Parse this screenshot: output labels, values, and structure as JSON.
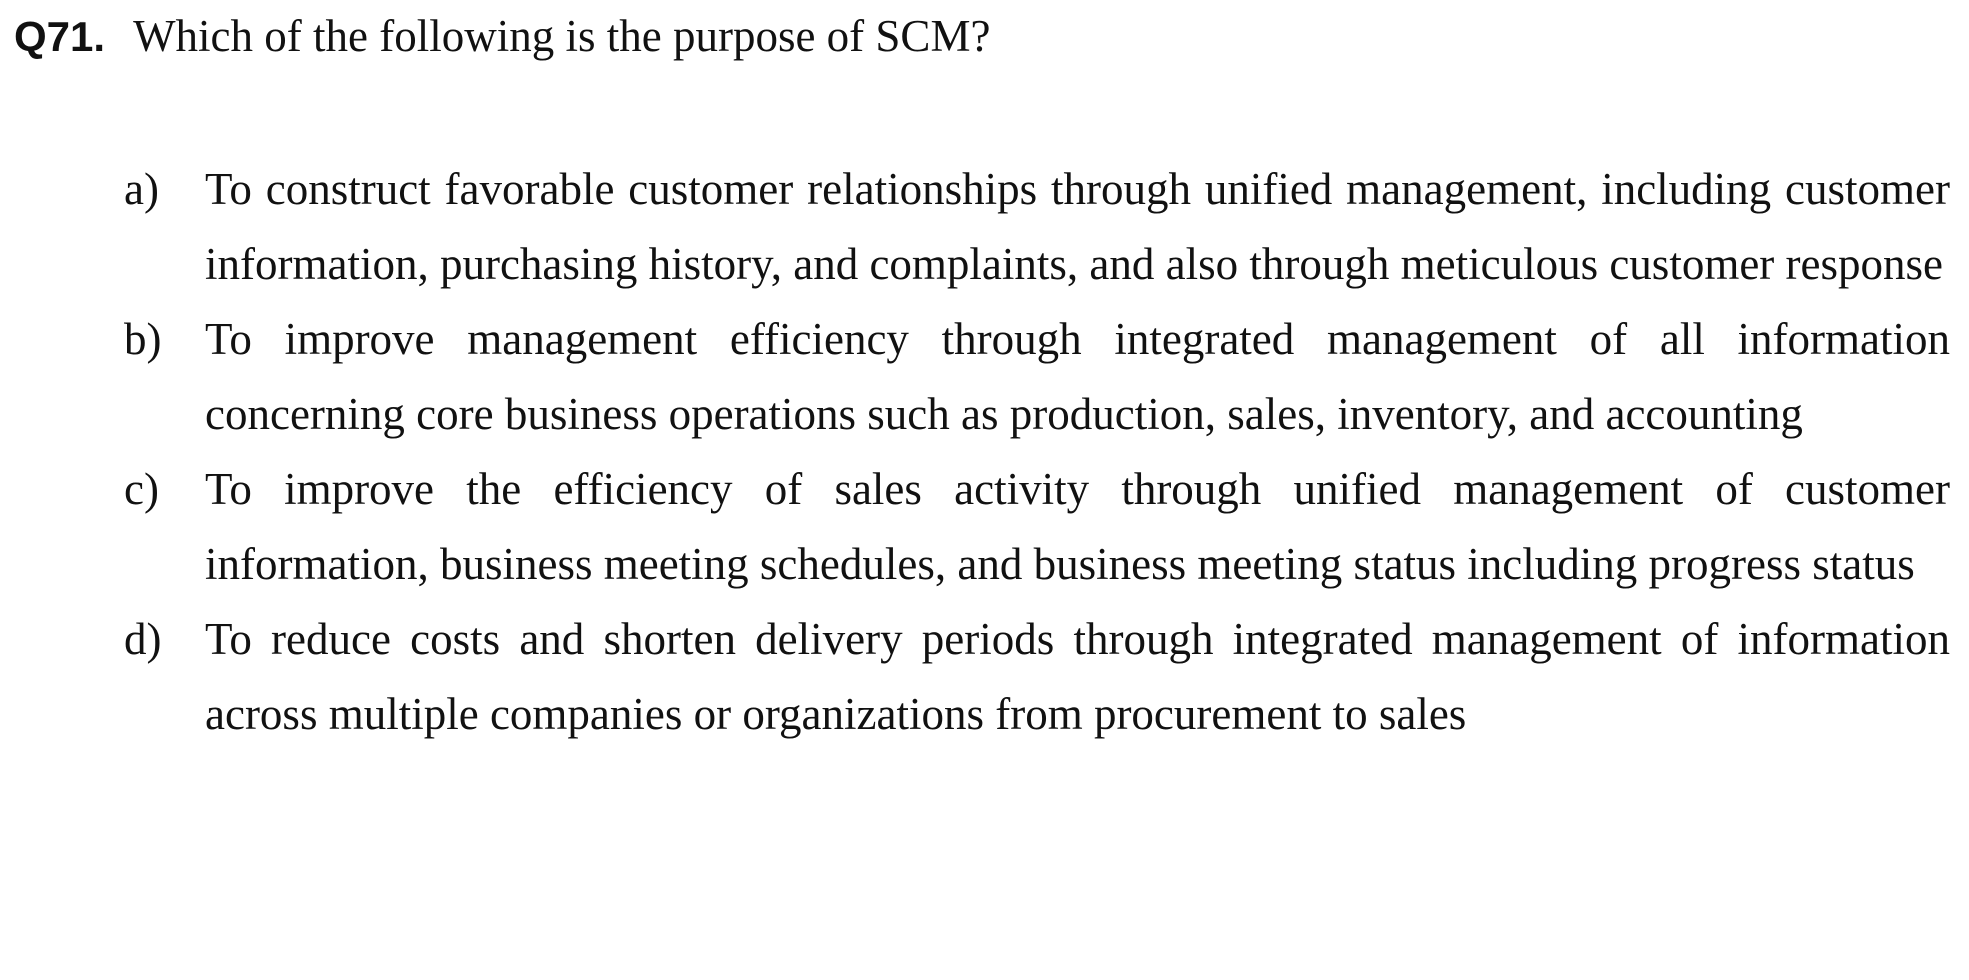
{
  "question": {
    "number": "Q71.",
    "text": "Which of the following is the purpose of SCM?"
  },
  "options": [
    {
      "label": "a)",
      "text": "To construct favorable customer relationships through unified management, including customer information, purchasing history, and complaints, and also through meticulous customer response"
    },
    {
      "label": "b)",
      "text": "To improve management efficiency through integrated management of all information concerning core business operations such as production, sales, inventory, and accounting"
    },
    {
      "label": "c)",
      "text": "To improve the efficiency of sales activity through unified management of customer information, business meeting schedules, and business meeting status including progress status"
    },
    {
      "label": "d)",
      "text": "To reduce costs and shorten delivery periods through integrated management of information across multiple companies or organizations from procurement to sales"
    }
  ]
}
